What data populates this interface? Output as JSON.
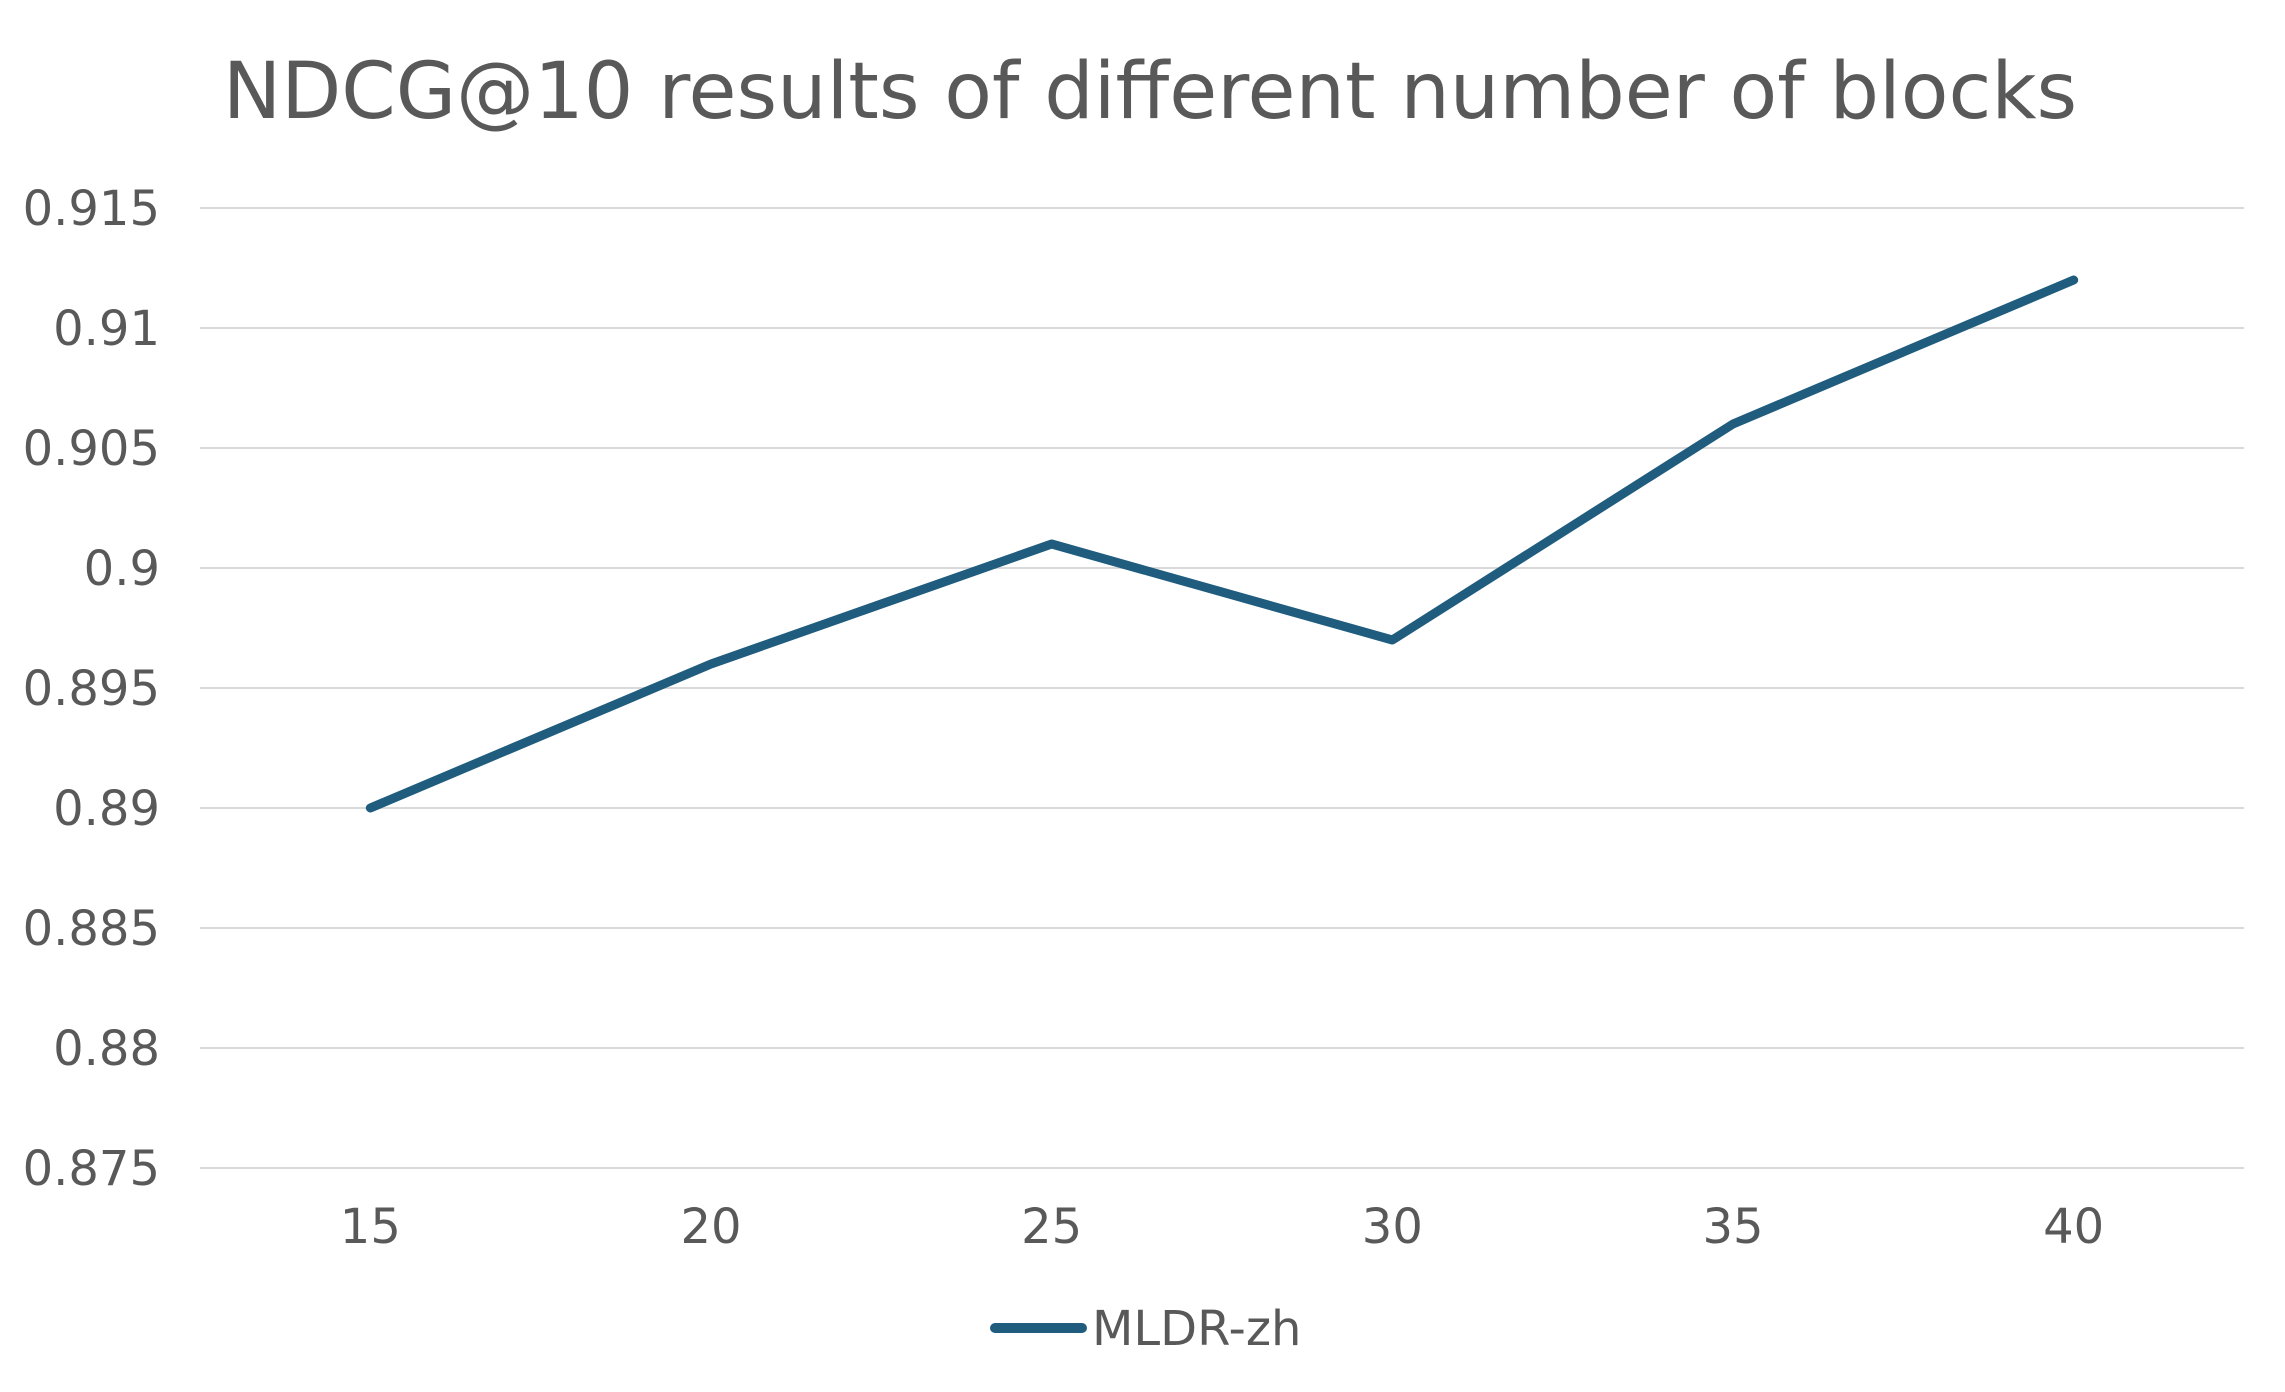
{
  "chart_data": {
    "type": "line",
    "title": "NDCG@10 results of different number of blocks",
    "xlabel": "",
    "ylabel": "",
    "categories": [
      "15",
      "20",
      "25",
      "30",
      "35",
      "40"
    ],
    "y_ticks": [
      "0.875",
      "0.88",
      "0.885",
      "0.89",
      "0.895",
      "0.9",
      "0.905",
      "0.91",
      "0.915"
    ],
    "ylim": [
      0.875,
      0.915
    ],
    "grid": true,
    "legend_position": "bottom",
    "series": [
      {
        "name": "MLDR-zh",
        "color": "#1f5c7e",
        "values": [
          0.89,
          0.896,
          0.901,
          0.897,
          0.906,
          0.912
        ]
      }
    ]
  }
}
